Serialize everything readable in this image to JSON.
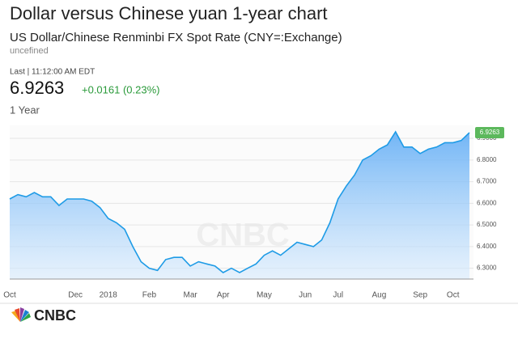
{
  "header": {
    "title": "Dollar versus Chinese yuan 1-year chart",
    "subtitle": "US Dollar/Chinese Renminbi FX Spot Rate (CNY=:Exchange)",
    "note": "uncefined",
    "time": "Last | 11:12:00 AM EDT",
    "last_price": 6.9263,
    "change": "+0.0161 (0.23%)",
    "range": "1 Year"
  },
  "chart_data": {
    "type": "line",
    "color": "#1e9be6",
    "categories": [
      "Oct",
      null,
      null,
      null,
      null,
      null,
      null,
      null,
      "Dec",
      null,
      null,
      null,
      "2018",
      null,
      null,
      null,
      null,
      "Feb",
      null,
      null,
      null,
      null,
      "Mar",
      null,
      null,
      null,
      "Apr",
      null,
      null,
      null,
      null,
      "May",
      null,
      null,
      null,
      null,
      "Jun",
      null,
      null,
      null,
      "Jul",
      null,
      null,
      null,
      null,
      "Aug",
      null,
      null,
      null,
      null,
      "Sep",
      null,
      null,
      null,
      "Oct",
      null,
      null
    ],
    "values": [
      6.62,
      6.64,
      6.63,
      6.65,
      6.63,
      6.63,
      6.59,
      6.62,
      6.62,
      6.62,
      6.61,
      6.58,
      6.53,
      6.51,
      6.48,
      6.4,
      6.33,
      6.3,
      6.29,
      6.34,
      6.35,
      6.35,
      6.31,
      6.33,
      6.32,
      6.31,
      6.28,
      6.3,
      6.28,
      6.3,
      6.32,
      6.36,
      6.38,
      6.36,
      6.39,
      6.42,
      6.41,
      6.4,
      6.43,
      6.51,
      6.62,
      6.68,
      6.73,
      6.8,
      6.82,
      6.85,
      6.87,
      6.93,
      6.86,
      6.86,
      6.83,
      6.85,
      6.86,
      6.88,
      6.88,
      6.89,
      6.9263
    ],
    "ylim": [
      6.25,
      6.96
    ],
    "yticks": [
      {
        "value": 6.3,
        "label": "6.3000"
      },
      {
        "value": 6.4,
        "label": "6.4000"
      },
      {
        "value": 6.5,
        "label": "6.5000"
      },
      {
        "value": 6.6,
        "label": "6.6000"
      },
      {
        "value": 6.7,
        "label": "6.7000"
      },
      {
        "value": 6.8,
        "label": "6.8000"
      },
      {
        "value": 6.9,
        "label": "6.9000"
      }
    ],
    "grid": true
  },
  "logo": "CNBC"
}
